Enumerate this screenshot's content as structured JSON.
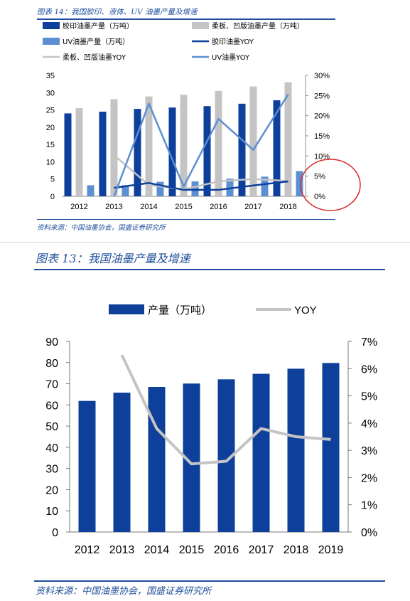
{
  "top_figure": {
    "caption": "图表 14：我国胶印、液体、UV 油墨产量及增速",
    "source": "资料来源：中国油墨协会，国盛证券研究所"
  },
  "bottom_figure": {
    "caption": "图表 13：我国油墨产量及增速",
    "source": "资料来源：中国油墨协会，国盛证券研究所"
  },
  "colors": {
    "dark_blue": "#0d3f9b",
    "gray": "#c4c4c4",
    "light_blue": "#5b8fd1",
    "header_blue": "#1f4e9b",
    "annotation_red": "#d62a2a"
  },
  "chart_data": [
    {
      "type": "bar",
      "categories": [
        "2012",
        "2013",
        "2014",
        "2015",
        "2016",
        "2017",
        "2018"
      ],
      "series": [
        {
          "name": "胶印油墨产量（万吨）",
          "kind": "bar",
          "axis": "left",
          "color": "#0d3f9b",
          "values": [
            24,
            24.5,
            25.3,
            25.7,
            26.1,
            26.8,
            27.8
          ]
        },
        {
          "name": "柔板、凹版油墨产量（万吨）",
          "kind": "bar",
          "axis": "left",
          "color": "#c4c4c4",
          "values": [
            25.5,
            28.1,
            28.9,
            29.4,
            30.5,
            31.8,
            33
          ]
        },
        {
          "name": "UV油墨产量（万吨）",
          "kind": "bar",
          "axis": "left",
          "color": "#5b8fd1",
          "values": [
            3.2,
            3.2,
            4.2,
            4.3,
            5.1,
            5.7,
            7.3
          ]
        },
        {
          "name": "胶印油墨YOY",
          "kind": "line",
          "axis": "right",
          "color": "#0d3f9b",
          "values": [
            null,
            2.1,
            3.3,
            1.6,
            1.6,
            2.7,
            3.7
          ]
        },
        {
          "name": "柔板、凹版油墨YOY",
          "kind": "line",
          "axis": "right",
          "color": "#c4c4c4",
          "values": [
            null,
            10.2,
            2.8,
            1.7,
            3.7,
            4.3,
            3.8
          ]
        },
        {
          "name": "UV油墨YOY",
          "kind": "line",
          "axis": "right",
          "color": "#5b8fd1",
          "values": [
            null,
            0,
            23,
            2.4,
            19.2,
            11.5,
            25.3
          ]
        }
      ],
      "ylim_left": [
        0,
        35
      ],
      "yticks_left": [
        "0",
        "5",
        "10",
        "15",
        "20",
        "25",
        "30",
        "35"
      ],
      "ylim_right": [
        0,
        30
      ],
      "yticks_right": [
        "0%",
        "5%",
        "10%",
        "15%",
        "20%",
        "25%",
        "30%"
      ],
      "legend": "top, 3 columns",
      "annotation": "red circle around 0%–5% on right axis"
    },
    {
      "type": "bar",
      "categories": [
        "2012",
        "2013",
        "2014",
        "2015",
        "2016",
        "2017",
        "2018",
        "2019"
      ],
      "series": [
        {
          "name": "产量（万吨）",
          "kind": "bar",
          "axis": "left",
          "color": "#0d3f9b",
          "values": [
            61.9,
            65.8,
            68.5,
            70.1,
            72.1,
            74.7,
            77.1,
            79.8
          ]
        },
        {
          "name": "YOY",
          "kind": "line",
          "axis": "right",
          "color": "#c4c4c4",
          "values": [
            null,
            6.5,
            3.8,
            2.5,
            2.6,
            3.8,
            3.5,
            3.4
          ]
        }
      ],
      "ylim_left": [
        0,
        90
      ],
      "yticks_left": [
        "0",
        "10",
        "20",
        "30",
        "40",
        "50",
        "60",
        "70",
        "80",
        "90"
      ],
      "ylim_right": [
        0,
        7
      ],
      "yticks_right": [
        "0%",
        "1%",
        "2%",
        "3%",
        "4%",
        "5%",
        "6%",
        "7%"
      ],
      "legend": "top"
    }
  ]
}
